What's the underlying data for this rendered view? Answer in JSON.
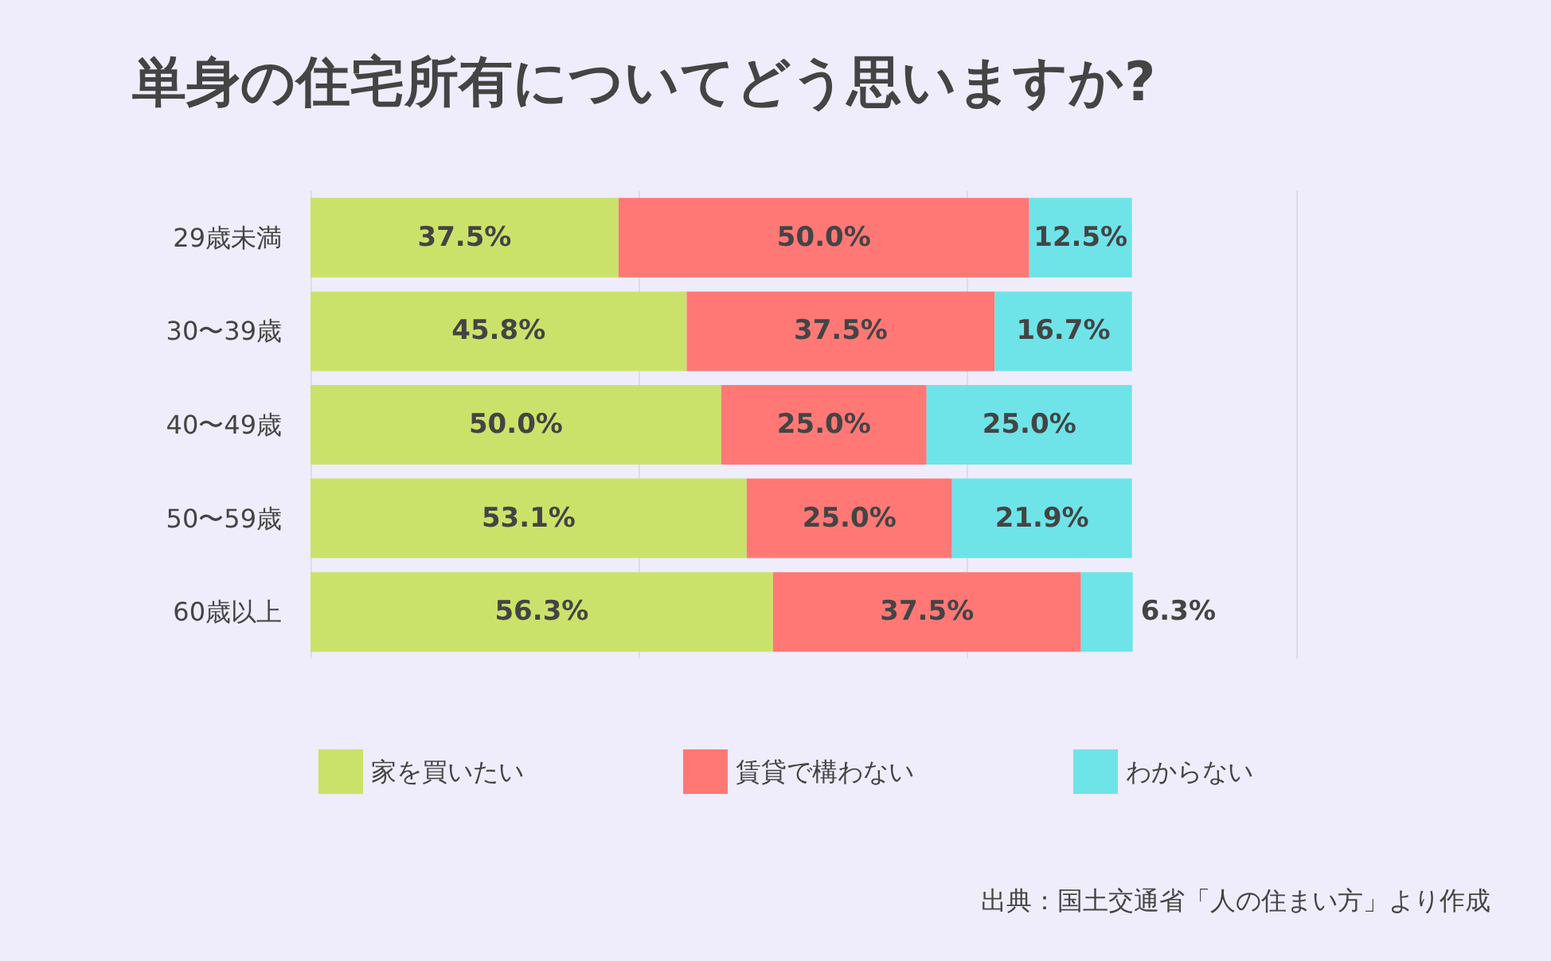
{
  "chart_data": {
    "type": "bar",
    "orientation": "horizontal",
    "stacked": true,
    "title": "単身の住宅所有についてどう思いますか?",
    "categories": [
      "29歳未満",
      "30〜39歳",
      "40〜49歳",
      "50〜59歳",
      "60歳以上"
    ],
    "series": [
      {
        "name": "家を買いたい",
        "color": "#cbe26a",
        "values": [
          37.5,
          45.8,
          50.0,
          53.1,
          56.3
        ],
        "value_labels": [
          "37.5%",
          "45.8%",
          "50.0%",
          "53.1%",
          "56.3%"
        ]
      },
      {
        "name": "賃貸で構わない",
        "color": "#ff7876",
        "values": [
          50.0,
          37.5,
          25.0,
          25.0,
          37.5
        ],
        "value_labels": [
          "50.0%",
          "37.5%",
          "25.0%",
          "25.0%",
          "37.5%"
        ]
      },
      {
        "name": "わからない",
        "color": "#6ee4e8",
        "values": [
          12.5,
          16.7,
          25.0,
          21.9,
          6.3
        ],
        "value_labels": [
          "12.5%",
          "16.7%",
          "25.0%",
          "21.9%",
          "6.3%"
        ]
      }
    ],
    "xlim": [
      0,
      120
    ],
    "xticks": [
      {
        "value": 0,
        "label": null
      },
      {
        "value": 40,
        "label": null
      },
      {
        "value": 80,
        "label": null
      },
      {
        "value": 120,
        "label": null
      }
    ],
    "grid": "x",
    "tick_labels": "y",
    "legend": "bottom",
    "annotations": [
      "出典：国土交通省「人の住まい方」より作成"
    ]
  }
}
